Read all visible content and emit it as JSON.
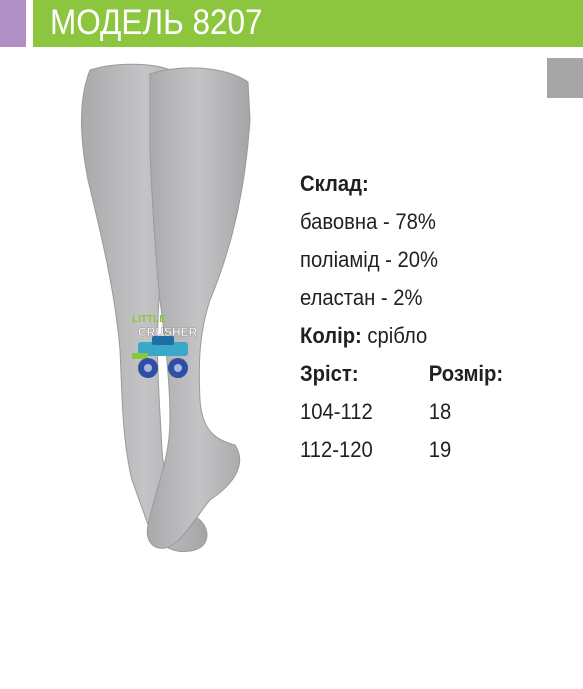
{
  "header": {
    "title": "МОДЕЛЬ 8207"
  },
  "colors": {
    "header_green": "#8cc63f",
    "tab_purple": "#b08fc4",
    "tab_grey": "#a6a6a6",
    "tights_grey": "#b9b9bb"
  },
  "product": {
    "print_text": [
      "LITTLE",
      "CRUSHER"
    ]
  },
  "specs": {
    "composition_label": "Склад:",
    "composition": [
      "бавовна - 78%",
      "поліамід - 20%",
      "еластан - 2%"
    ],
    "color_label": "Колір:",
    "color_value": "срібло",
    "height_label": "Зріст:",
    "size_label": "Розмір:",
    "sizes": [
      {
        "height": "104-112",
        "size": "18"
      },
      {
        "height": "112-120",
        "size": "19"
      }
    ]
  }
}
